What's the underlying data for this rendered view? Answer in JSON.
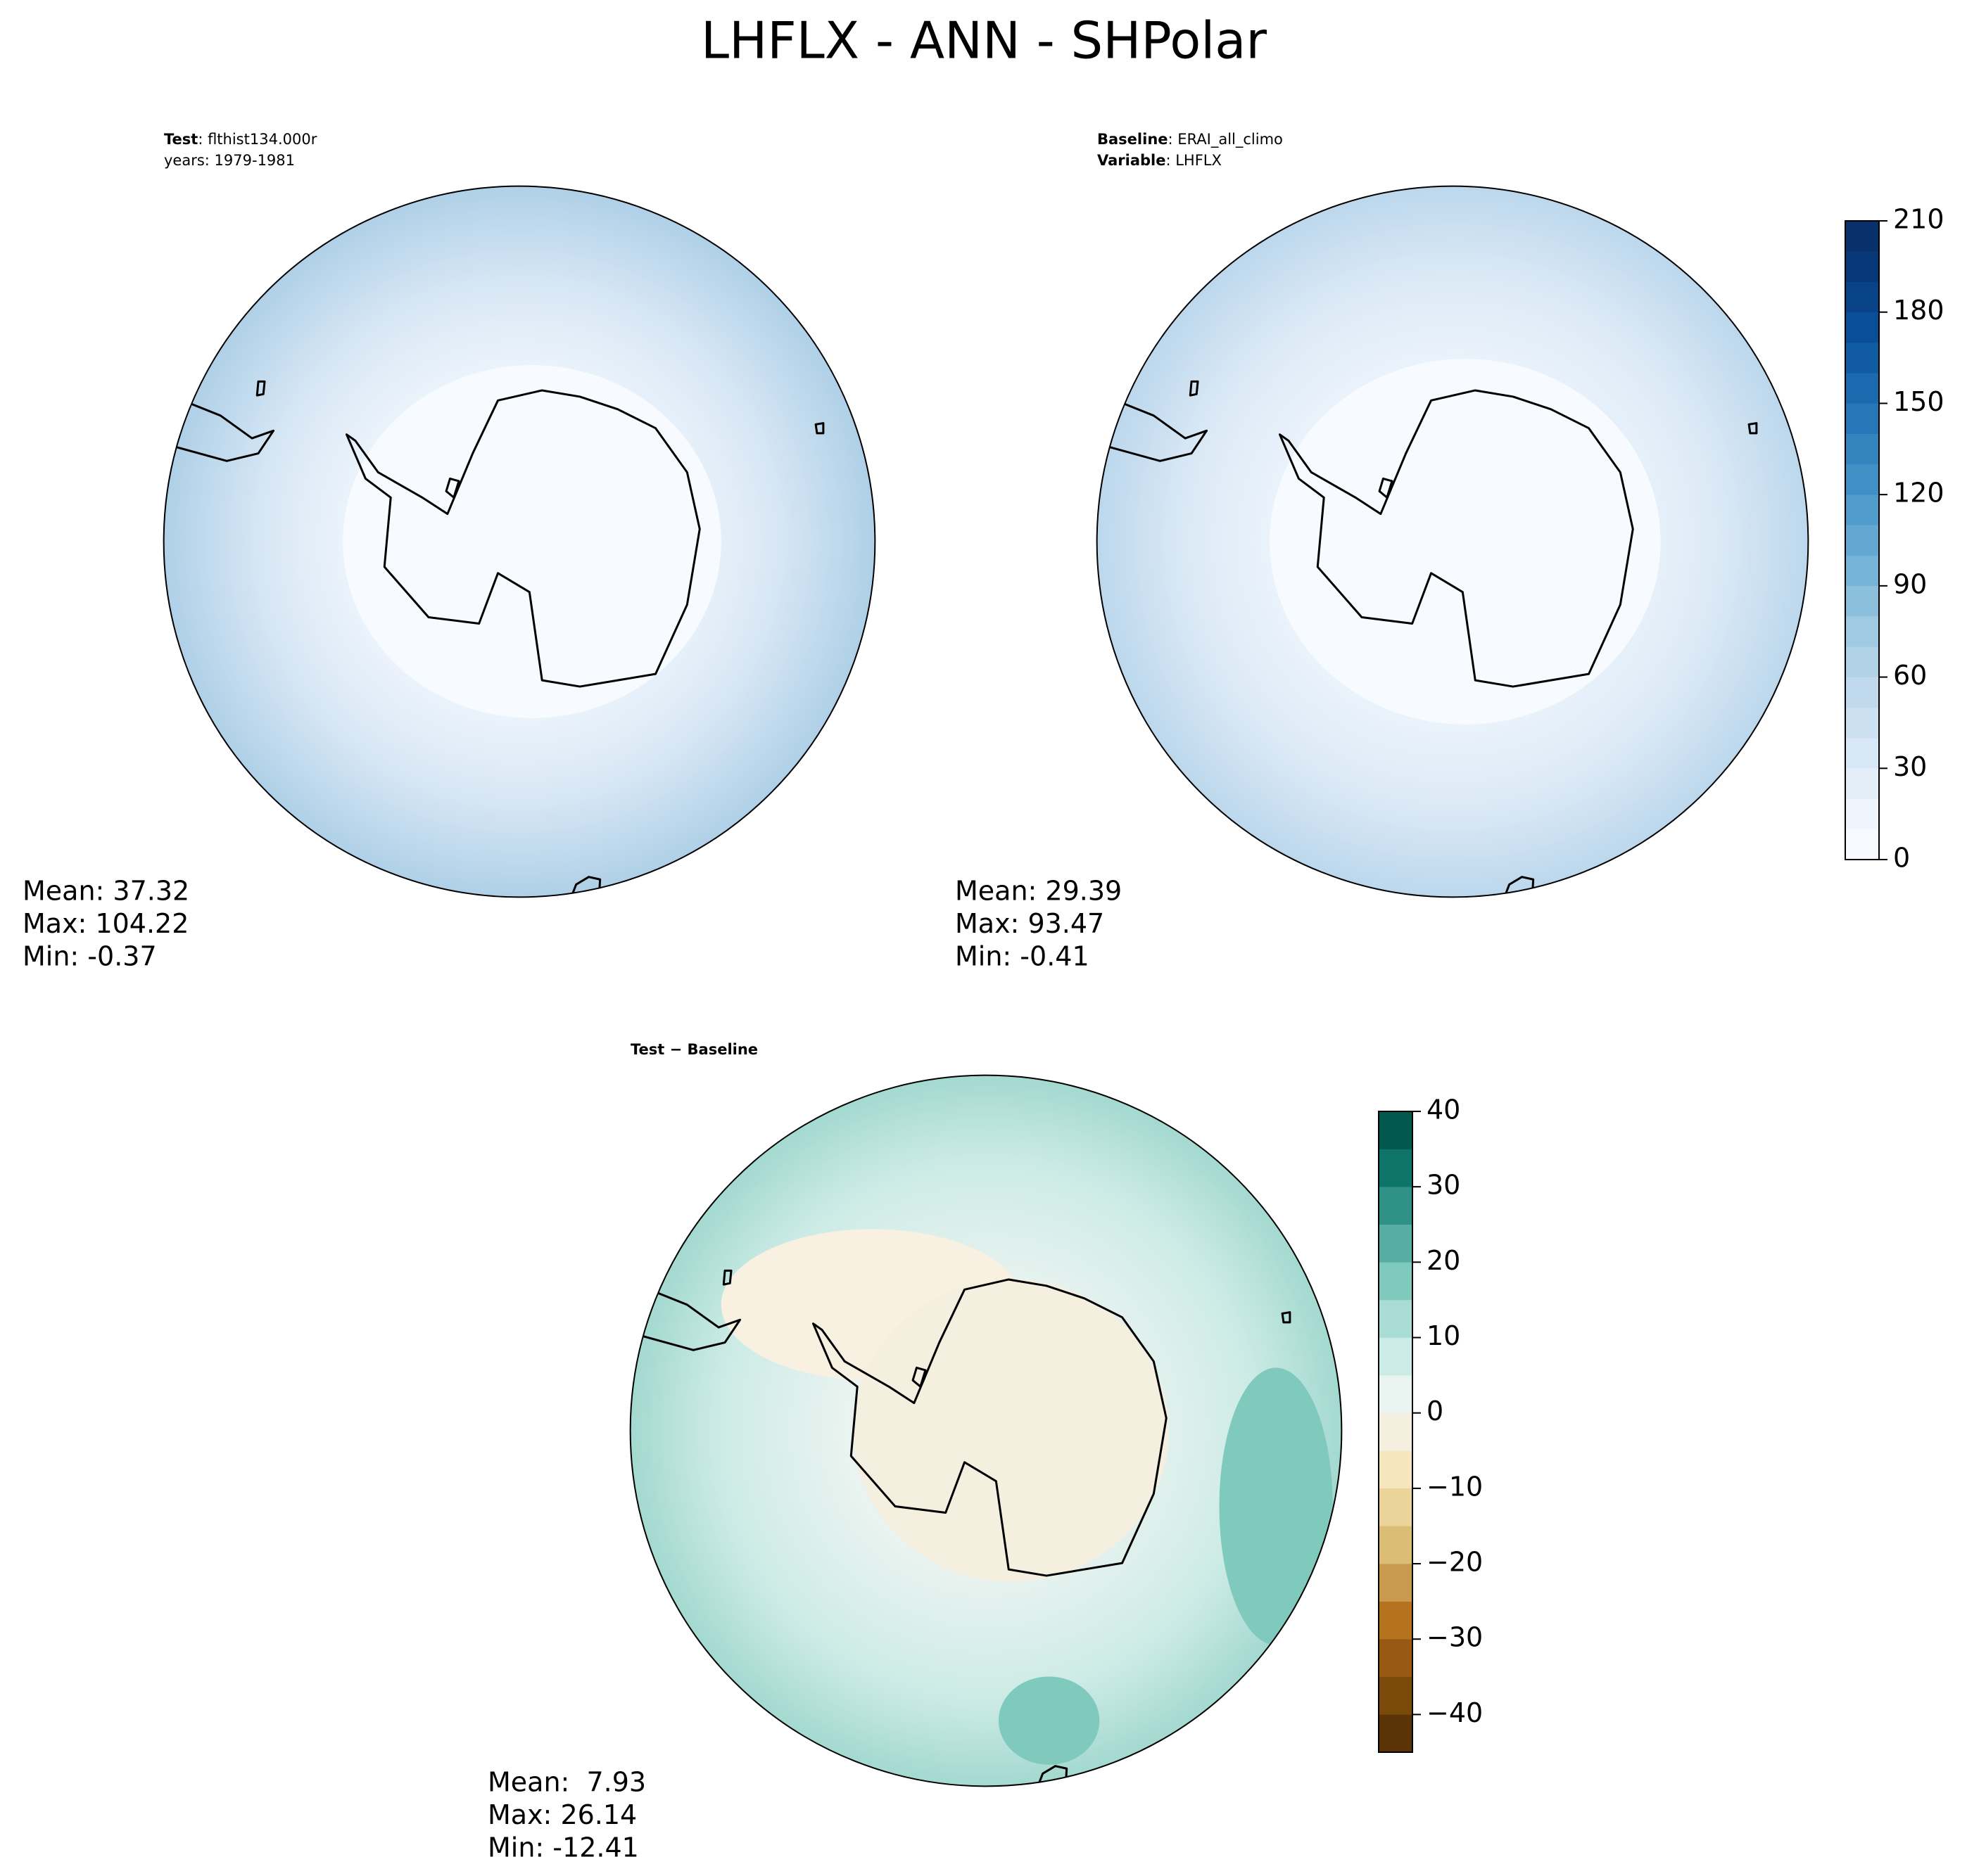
{
  "title": "LHFLX - ANN - SHPolar",
  "panels": [
    {
      "header": [
        [
          {
            "text": "Test",
            "bold": true
          },
          {
            "text": ": flthist134.000r"
          }
        ],
        [
          {
            "text": "years: 1979-1981"
          }
        ]
      ],
      "stats": [
        "Mean: 37.32",
        "Max: 104.22",
        "Min: -0.37"
      ]
    },
    {
      "header": [
        [
          {
            "text": "Baseline",
            "bold": true
          },
          {
            "text": ": ERAI_all_climo"
          }
        ],
        [
          {
            "text": "Variable",
            "bold": true
          },
          {
            "text": ": LHFLX"
          }
        ]
      ],
      "stats": [
        "Mean: 29.39",
        "Max: 93.47",
        "Min: -0.41"
      ]
    },
    {
      "header": [
        [
          {
            "text": "Test − Baseline",
            "bold": true
          }
        ]
      ],
      "stats": [
        "Mean:  7.93",
        "Max: 26.14",
        "Min: -12.41"
      ]
    }
  ],
  "colorbars": [
    {
      "lim": [
        0,
        210
      ],
      "ticks": [
        0,
        30,
        60,
        90,
        120,
        150,
        180,
        210
      ],
      "colors": [
        "#f7fbff",
        "#eef5fc",
        "#e3eef9",
        "#d8e7f5",
        "#cde0f1",
        "#c1d9ed",
        "#b2d2e8",
        "#a0cae1",
        "#8bbfdc",
        "#75b4d8",
        "#62a8d3",
        "#519ccc",
        "#4190c5",
        "#3383be",
        "#2676b8",
        "#1b69af",
        "#105ba4",
        "#094e97",
        "#084287",
        "#083877",
        "#08306b"
      ]
    },
    {
      "lim": [
        -45,
        40
      ],
      "ticks": [
        {
          "value": -40,
          "label": "−40"
        },
        {
          "value": -30,
          "label": "−30"
        },
        {
          "value": -20,
          "label": "−20"
        },
        {
          "value": -10,
          "label": "−10"
        },
        0,
        10,
        20,
        30,
        40
      ],
      "colors": [
        "#5a3407",
        "#7a4a0b",
        "#985a12",
        "#b5731f",
        "#c99a4d",
        "#dbbd75",
        "#ead49a",
        "#f5e6c0",
        "#f5efe0",
        "#e9f3f0",
        "#cdebe6",
        "#a9dcd4",
        "#80c9bd",
        "#57ada1",
        "#2f9085",
        "#0e7469",
        "#01584c"
      ]
    }
  ]
}
